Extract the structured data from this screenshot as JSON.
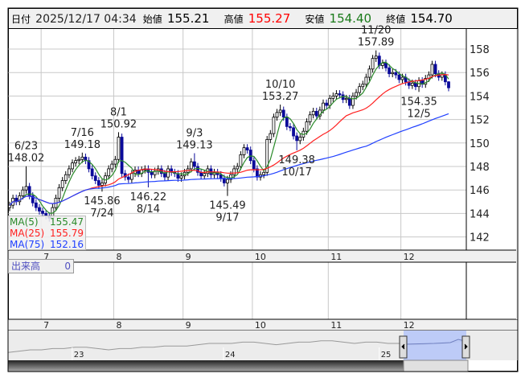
{
  "header": {
    "date_label": "日付",
    "datetime": "2025/12/17 04:34",
    "open_label": "始値",
    "open": "155.21",
    "high_label": "高値",
    "high": "155.27",
    "low_label": "安値",
    "low": "154.40",
    "close_label": "終値",
    "close": "154.70"
  },
  "colors": {
    "up_fill": "#ffffff",
    "up_line": "#000000",
    "down": "#0a0a9a",
    "ma5": "#2a8a2a",
    "ma25": "#ff2020",
    "ma75": "#2040ff",
    "high_value": "#ff0000",
    "low_value": "#1a7a1a"
  },
  "ma_legend": [
    {
      "label": "MA(5)",
      "value": "155.47",
      "color": "#2a8a2a",
      "period": 5
    },
    {
      "label": "MA(25)",
      "value": "155.79",
      "color": "#ff2020",
      "period": 25
    },
    {
      "label": "MA(75)",
      "value": "152.16",
      "color": "#2040ff",
      "period": 75
    }
  ],
  "volume": {
    "label": "出来高",
    "value": "0"
  },
  "chart_data": {
    "type": "candlestick",
    "yaxis": {
      "ticks": [
        142,
        144,
        146,
        148,
        150,
        152,
        154,
        156,
        158
      ],
      "range": [
        141,
        159.7
      ],
      "grid": true
    },
    "xaxis": {
      "month_labels": [
        "7",
        "8",
        "9",
        "10",
        "11",
        "12"
      ],
      "month_start_index": [
        11,
        33,
        54,
        75,
        98,
        120
      ],
      "grid": true
    },
    "first_open": 144.5,
    "closes": [
      144.7,
      145.3,
      145.0,
      145.5,
      146.0,
      146.3,
      145.5,
      144.9,
      144.5,
      144.2,
      144.0,
      143.8,
      143.6,
      144.5,
      145.3,
      146.2,
      146.8,
      147.3,
      147.8,
      148.3,
      148.5,
      148.6,
      148.8,
      148.5,
      147.8,
      147.2,
      146.8,
      146.4,
      146.6,
      147.2,
      147.8,
      148.2,
      148.6,
      150.5,
      147.4,
      147.1,
      146.9,
      147.4,
      147.7,
      147.4,
      147.7,
      147.8,
      147.5,
      147.3,
      147.6,
      147.8,
      147.4,
      147.1,
      147.8,
      147.5,
      147.4,
      147.0,
      147.2,
      147.5,
      147.8,
      148.4,
      148.0,
      147.5,
      147.2,
      147.4,
      147.8,
      147.3,
      147.5,
      147.3,
      147.0,
      146.6,
      146.9,
      147.3,
      147.8,
      148.0,
      149.0,
      149.6,
      149.4,
      148.5,
      147.8,
      147.1,
      147.3,
      147.5,
      150.3,
      150.8,
      152.2,
      152.6,
      152.8,
      152.2,
      151.4,
      151.3,
      150.6,
      150.2,
      150.5,
      151.0,
      151.8,
      152.4,
      152.7,
      152.3,
      152.8,
      153.4,
      153.2,
      153.8,
      154.0,
      154.2,
      154.1,
      153.7,
      153.8,
      153.2,
      154.0,
      154.3,
      154.8,
      155.0,
      155.6,
      156.3,
      157.2,
      157.4,
      156.6,
      156.8,
      156.4,
      155.9,
      156.0,
      155.8,
      155.4,
      155.6,
      155.2,
      154.9,
      155.1,
      154.8,
      155.3,
      155.0,
      155.5,
      155.8,
      156.7,
      155.9,
      155.6,
      155.8,
      155.21,
      154.7
    ],
    "last_candle": {
      "open": 155.21,
      "high": 155.27,
      "low": 154.4,
      "close": 154.7
    },
    "annotations": [
      {
        "date": "6/23",
        "value": "148.02",
        "index": 5,
        "kind": "high"
      },
      {
        "date": "7/16",
        "value": "149.18",
        "index": 22,
        "kind": "high"
      },
      {
        "date": "7/24",
        "value": "145.86",
        "index": 28,
        "kind": "low"
      },
      {
        "date": "8/1",
        "value": "150.92",
        "index": 33,
        "kind": "high"
      },
      {
        "date": "8/14",
        "value": "146.22",
        "index": 42,
        "kind": "low"
      },
      {
        "date": "9/3",
        "value": "149.13",
        "index": 56,
        "kind": "high"
      },
      {
        "date": "9/17",
        "value": "145.49",
        "index": 66,
        "kind": "low"
      },
      {
        "date": "10/10",
        "value": "153.27",
        "index": 82,
        "kind": "high"
      },
      {
        "date": "10/17",
        "value": "149.38",
        "index": 87,
        "kind": "low"
      },
      {
        "date": "11/20",
        "value": "157.89",
        "index": 111,
        "kind": "high"
      },
      {
        "date": "12/5",
        "value": "154.35",
        "index": 124,
        "kind": "low"
      }
    ]
  },
  "navigator": {
    "year_labels": [
      "23",
      "24",
      "25"
    ],
    "series": [
      3,
      4,
      5,
      5,
      6,
      6,
      7,
      7,
      6,
      5,
      6,
      6,
      7,
      7,
      8,
      8,
      8,
      9,
      10,
      10,
      10,
      11,
      11,
      10,
      9,
      10,
      11,
      11,
      12,
      12,
      11,
      10,
      11,
      11,
      10,
      10,
      9,
      9,
      10,
      10,
      11,
      12
    ]
  }
}
